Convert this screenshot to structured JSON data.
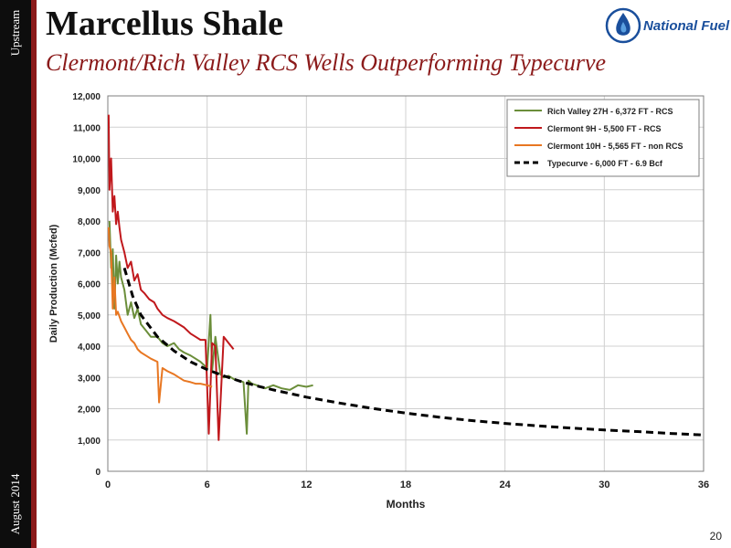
{
  "slide": {
    "title": "Marcellus Shale",
    "subtitle": "Clermont/Rich Valley RCS Wells Outperforming Typecurve",
    "side_top": "Upstream",
    "side_bottom": "August 2014",
    "page_number": "20",
    "logo_text": "National Fuel",
    "colors": {
      "sidebar": "#0d0d0d",
      "accent": "#8b1a1a",
      "logo": "#1a4f9c"
    }
  },
  "chart_data": {
    "type": "line",
    "xlabel": "Months",
    "ylabel": "Daily Production (Mcfed)",
    "xlim": [
      0,
      36
    ],
    "ylim": [
      0,
      12000
    ],
    "xticks": [
      0,
      6,
      12,
      18,
      24,
      30,
      36
    ],
    "yticks": [
      0,
      1000,
      2000,
      3000,
      4000,
      5000,
      6000,
      7000,
      8000,
      9000,
      10000,
      11000,
      12000
    ],
    "grid": true,
    "legend_position": "top-right",
    "series": [
      {
        "name": "Rich Valley 27H - 6,372 FT - RCS",
        "color": "#6b8e3a",
        "dash": "solid",
        "x": [
          0.1,
          0.2,
          0.3,
          0.4,
          0.5,
          0.6,
          0.7,
          0.8,
          1.0,
          1.2,
          1.4,
          1.6,
          1.8,
          2.0,
          2.3,
          2.6,
          3.0,
          3.3,
          3.6,
          4.0,
          4.3,
          4.6,
          5.0,
          5.3,
          5.6,
          6.0,
          6.2,
          6.3,
          6.5,
          6.8,
          7.0,
          7.3,
          7.6,
          7.9,
          8.2,
          8.4,
          8.5,
          8.7,
          9.0,
          9.5,
          10.0,
          10.5,
          11.0,
          11.5,
          12.0,
          12.4
        ],
        "y": [
          8000,
          6500,
          7100,
          5200,
          6900,
          6000,
          6700,
          6200,
          5800,
          5000,
          5400,
          4900,
          5200,
          4700,
          4500,
          4300,
          4300,
          4100,
          4000,
          4100,
          3900,
          3800,
          3700,
          3600,
          3500,
          3300,
          5000,
          3200,
          4300,
          3100,
          3000,
          3050,
          2950,
          2900,
          2850,
          1200,
          2900,
          2800,
          2750,
          2650,
          2750,
          2650,
          2600,
          2750,
          2700,
          2750
        ]
      },
      {
        "name": "Clermont 9H - 5,500 FT - RCS",
        "color": "#c0181c",
        "dash": "solid",
        "x": [
          0.05,
          0.1,
          0.2,
          0.3,
          0.4,
          0.5,
          0.6,
          0.7,
          0.8,
          0.9,
          1.0,
          1.2,
          1.4,
          1.6,
          1.8,
          2.0,
          2.2,
          2.5,
          2.8,
          3.0,
          3.3,
          3.6,
          4.0,
          4.3,
          4.6,
          5.0,
          5.3,
          5.6,
          5.9,
          6.1,
          6.3,
          6.5,
          6.7,
          7.0,
          7.3,
          7.6
        ],
        "y": [
          11400,
          9000,
          10000,
          8300,
          8800,
          7900,
          8300,
          7800,
          7400,
          7200,
          7000,
          6500,
          6700,
          6100,
          6300,
          5800,
          5700,
          5500,
          5400,
          5200,
          5000,
          4900,
          4800,
          4700,
          4600,
          4400,
          4300,
          4200,
          4200,
          1200,
          4100,
          4000,
          1000,
          4300,
          4100,
          3900
        ]
      },
      {
        "name": "Clermont 10H - 5,565 FT - non RCS",
        "color": "#e87722",
        "dash": "solid",
        "x": [
          0.05,
          0.1,
          0.2,
          0.3,
          0.4,
          0.5,
          0.6,
          0.8,
          1.0,
          1.2,
          1.4,
          1.6,
          1.8,
          2.0,
          2.3,
          2.6,
          3.0,
          3.1,
          3.3,
          3.6,
          4.0,
          4.3,
          4.6,
          5.0,
          5.3,
          5.6,
          6.0,
          6.3
        ],
        "y": [
          7800,
          7200,
          7000,
          5200,
          6200,
          5000,
          5100,
          4800,
          4600,
          4400,
          4200,
          4100,
          3900,
          3800,
          3700,
          3600,
          3500,
          2200,
          3300,
          3200,
          3100,
          3000,
          2900,
          2850,
          2800,
          2800,
          2750,
          2700
        ]
      },
      {
        "name": "Typecurve - 6,000 FT - 6.9 Bcf",
        "color": "#000000",
        "dash": "dashed",
        "x": [
          1,
          1.5,
          2,
          3,
          4,
          5,
          6,
          7,
          8,
          9,
          10,
          12,
          14,
          16,
          18,
          20,
          22,
          24,
          26,
          28,
          30,
          32,
          34,
          36
        ],
        "y": [
          6500,
          5600,
          5000,
          4300,
          3850,
          3500,
          3250,
          3050,
          2880,
          2730,
          2600,
          2370,
          2180,
          2010,
          1860,
          1730,
          1620,
          1530,
          1450,
          1380,
          1320,
          1270,
          1210,
          1160
        ]
      }
    ]
  }
}
